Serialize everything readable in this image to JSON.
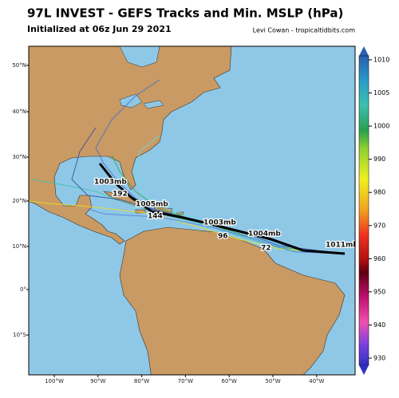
{
  "header": {
    "title": "97L INVEST - GEFS Tracks and Min. MSLP (hPa)",
    "subtitle": "Initialized at 06z Jun 29 2021",
    "credit": "Levi Cowan - tropicaltidbits.com"
  },
  "map": {
    "lat_labels": [
      "50°N",
      "40°N",
      "30°N",
      "20°N",
      "10°N",
      "0°",
      "10°S"
    ],
    "lon_labels": [
      "100°W",
      "90°W",
      "80°W",
      "70°W",
      "60°W",
      "50°W",
      "40°W"
    ],
    "annotations": [
      "1003mb",
      "192",
      "1005mb",
      "144",
      "1003mb",
      "96",
      "1004mb",
      "72",
      "1011mb"
    ]
  },
  "colorbar": {
    "ticks": [
      1010,
      1005,
      1000,
      990,
      980,
      970,
      960,
      950,
      940,
      930
    ]
  }
}
